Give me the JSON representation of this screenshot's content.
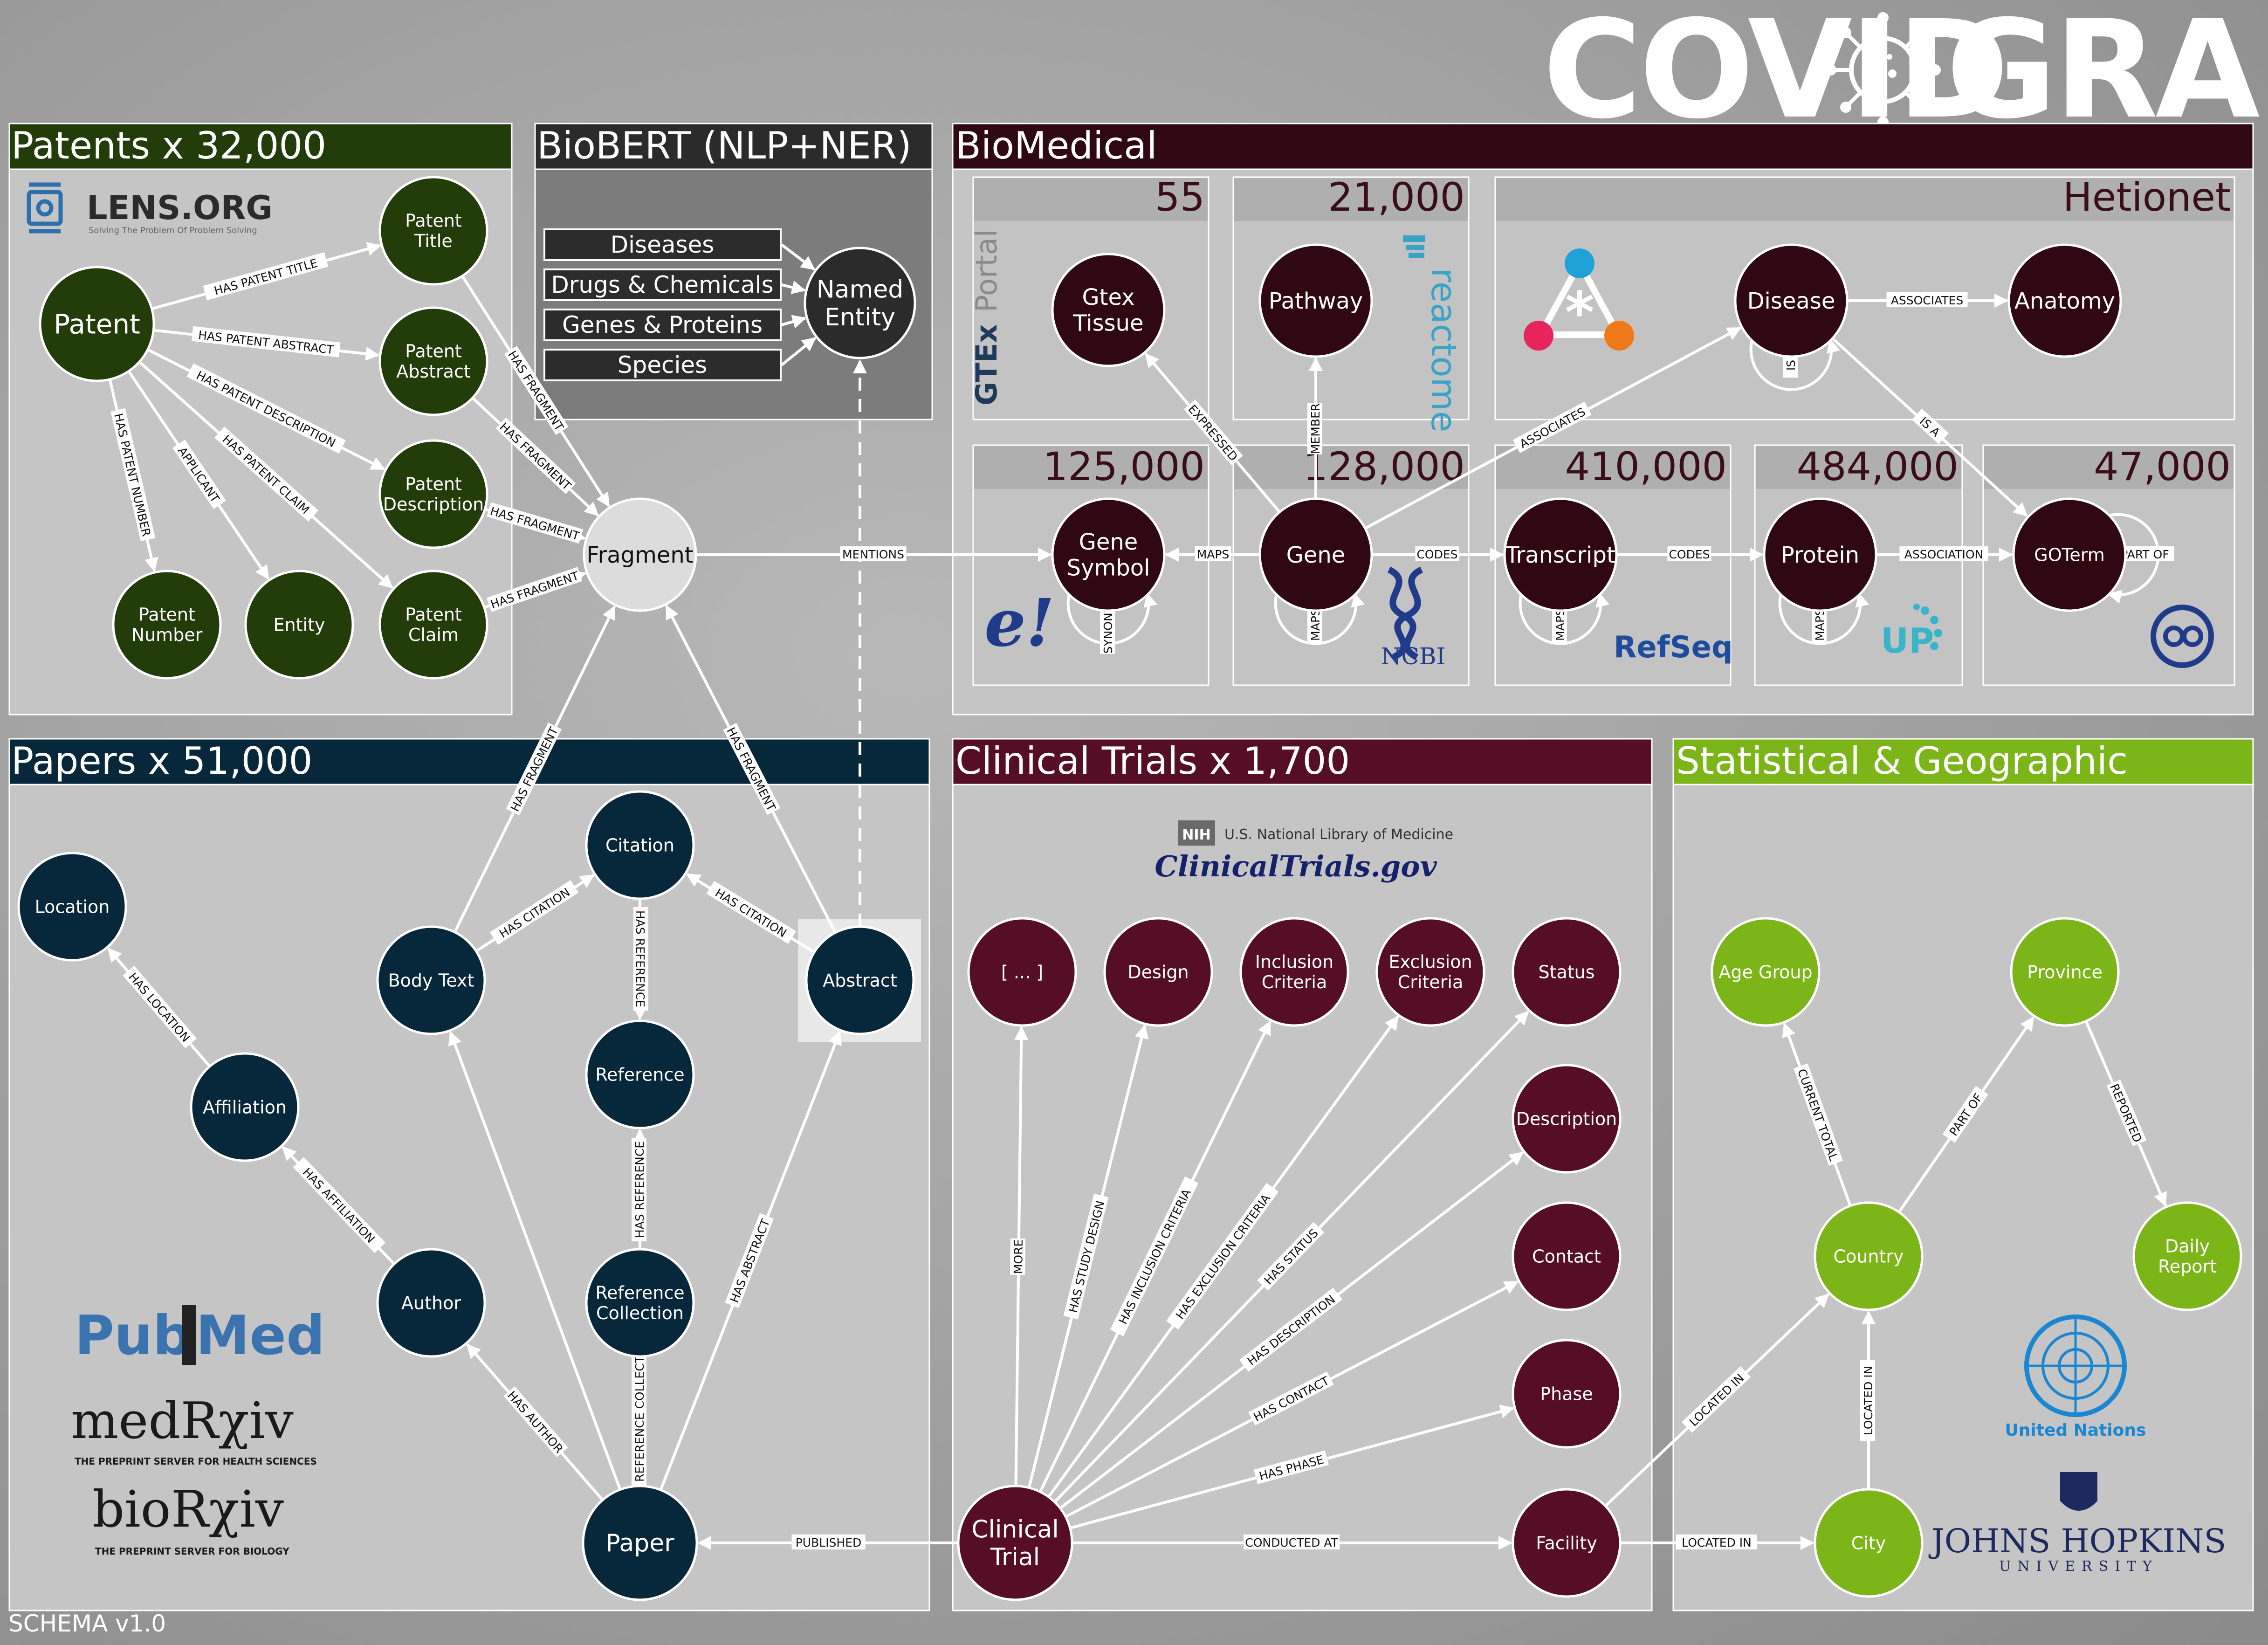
{
  "title": {
    "left": "COVID",
    "right": "GRAPH"
  },
  "version": "SCHEMA v1.0",
  "colors": {
    "patents": "#223d0a",
    "papers": "#07283b",
    "biomed": "#2f0813",
    "trials": "#560e26",
    "stats": "#7cb518",
    "fragment": "#dcdcdc",
    "biobert": "#2b2b2b"
  },
  "panels": {
    "patents": "Patents x 32,000",
    "biobert": "BioBERT (NLP+NER)",
    "biomedical": "BioMedical",
    "papers": "Papers x 51,000",
    "trials": "Clinical Trials x 1,700",
    "stats": "Statistical & Geographic"
  },
  "biomed_sections": {
    "gtex": "55",
    "pathway": "21,000",
    "hetionet": "Hetionet",
    "gene_symbol": "125,000",
    "gene": "128,000",
    "transcript": "410,000",
    "protein": "484,000",
    "goterm": "47,000"
  },
  "biobert_tags": [
    "Diseases",
    "Drugs & Chemicals",
    "Genes & Proteins",
    "Species"
  ],
  "logos": {
    "lens": "LENS.ORG",
    "lens_tag": "Solving The Problem Of Problem Solving",
    "gtex": "GTEx",
    "gtex2": "Portal",
    "reactome": "reactome",
    "ncbi": "NCBI",
    "refseq": "RefSeq",
    "uniprot": "UP",
    "entrez": "e!",
    "nlm": "U.S. National Library of Medicine",
    "nih": "NIH",
    "ctgov": "ClinicalTrials.gov",
    "pub": "Pub",
    "med": "Med",
    "medrxiv": "medRχiv",
    "medrxiv_tag": "THE PREPRINT SERVER FOR HEALTH SCIENCES",
    "biorxiv": "bioRχiv",
    "biorxiv_tag": "THE PREPRINT SERVER FOR BIOLOGY",
    "un": "United Nations",
    "jhu": "JOHNS HOPKINS",
    "jhu2": "UNIVERSITY"
  },
  "nodes": {
    "patent": [
      "Patent"
    ],
    "patent_title": [
      "Patent",
      "Title"
    ],
    "patent_abstract": [
      "Patent",
      "Abstract"
    ],
    "patent_description": [
      "Patent",
      "Description"
    ],
    "patent_claim": [
      "Patent",
      "Claim"
    ],
    "patent_number": [
      "Patent",
      "Number"
    ],
    "entity": [
      "Entity"
    ],
    "named_entity": [
      "Named",
      "Entity"
    ],
    "fragment": [
      "Fragment"
    ],
    "gtex_tissue": [
      "Gtex",
      "Tissue"
    ],
    "pathway": [
      "Pathway"
    ],
    "disease": [
      "Disease"
    ],
    "anatomy": [
      "Anatomy"
    ],
    "gene_symbol": [
      "Gene",
      "Symbol"
    ],
    "gene": [
      "Gene"
    ],
    "transcript": [
      "Transcript"
    ],
    "protein": [
      "Protein"
    ],
    "goterm": [
      "GOTerm"
    ],
    "location": [
      "Location"
    ],
    "affiliation": [
      "Affiliation"
    ],
    "author": [
      "Author"
    ],
    "body_text": [
      "Body Text"
    ],
    "citation": [
      "Citation"
    ],
    "reference": [
      "Reference"
    ],
    "reference_collection": [
      "Reference",
      "Collection"
    ],
    "abstract": [
      "Abstract"
    ],
    "paper": [
      "Paper"
    ],
    "more": [
      "[ ... ]"
    ],
    "design": [
      "Design"
    ],
    "inclusion": [
      "Inclusion",
      "Criteria"
    ],
    "exclusion": [
      "Exclusion",
      "Criteria"
    ],
    "status": [
      "Status"
    ],
    "description": [
      "Description"
    ],
    "contact": [
      "Contact"
    ],
    "phase": [
      "Phase"
    ],
    "facility": [
      "Facility"
    ],
    "clinical_trial": [
      "Clinical",
      "Trial"
    ],
    "age_group": [
      "Age Group"
    ],
    "province": [
      "Province"
    ],
    "country": [
      "Country"
    ],
    "daily_report": [
      "Daily",
      "Report"
    ],
    "city": [
      "City"
    ]
  },
  "edge_labels": {
    "has_patent_title": "HAS PATENT TITLE",
    "has_patent_abstract": "HAS PATENT ABSTRACT",
    "has_patent_description": "HAS PATENT DESCRIPTION",
    "has_patent_claim": "HAS PATENT CLAIM",
    "has_patent_number": "HAS PATENT NUMBER",
    "applicant": "APPLICANT",
    "has_fragment": "HAS FRAGMENT",
    "mentions": "MENTIONS",
    "maps": "MAPS",
    "codes": "CODES",
    "association": "ASSOCIATION",
    "part_of": "PART OF",
    "expressed": "EXPRESSED",
    "member": "MEMBER",
    "associates": "ASSOCIATES",
    "is_a": "IS A",
    "synonym": "SYNONYM",
    "has_location": "HAS LOCATION",
    "has_affiliation": "HAS AFFILIATION",
    "has_author": "HAS AUTHOR",
    "has_citation": "HAS CITATION",
    "has_reference": "HAS REFERENCE",
    "has_reference_collection": "HAS REFERENCE COLLECTION",
    "has_abstract": "HAS ABSTRACT",
    "published": "PUBLISHED",
    "more": "MORE",
    "has_study_design": "HAS STUDY DESIGN",
    "has_inclusion_criteria": "HAS INCLUSION CRITERIA",
    "has_exclusion_criteria": "HAS EXCLUSION CRITERIA",
    "has_status": "HAS STATUS",
    "has_description": "HAS DESCRIPTION",
    "has_contact": "HAS CONTACT",
    "has_phase": "HAS PHASE",
    "conducted_at": "CONDUCTED AT",
    "located_in": "LOCATED IN",
    "current_total": "CURRENT TOTAL",
    "reported": "REPORTED"
  }
}
